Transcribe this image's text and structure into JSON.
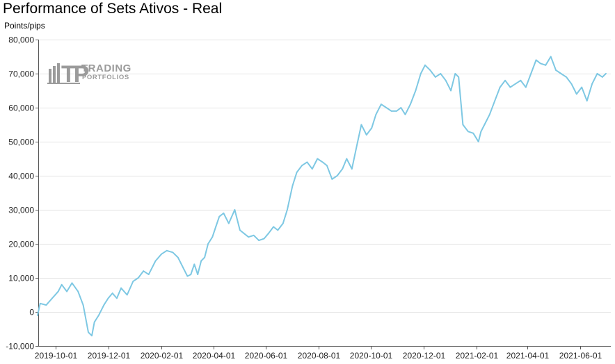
{
  "chart_data": {
    "type": "line",
    "title": "Performance of Sets Ativos - Real",
    "ylabel": "Points/pips",
    "xlabel": "",
    "ylim": [
      -10000,
      80000
    ],
    "y_ticks": [
      "-10,000",
      "0",
      "10,000",
      "20,000",
      "30,000",
      "40,000",
      "50,000",
      "60,000",
      "70,000",
      "80,000"
    ],
    "y_tick_values": [
      -10000,
      0,
      10000,
      20000,
      30000,
      40000,
      50000,
      60000,
      70000,
      80000
    ],
    "x_ticks": [
      "2019-10-01",
      "2019-12-01",
      "2020-02-01",
      "2020-04-01",
      "2020-06-01",
      "2020-08-01",
      "2020-10-01",
      "2020-12-01",
      "2021-02-01",
      "2021-04-01",
      "2021-06-01"
    ],
    "x_range": [
      "2019-09-10",
      "2021-07-01"
    ],
    "grid": true,
    "line_color": "#7ec8e3",
    "series": [
      {
        "x": [
          "2019-09-10",
          "2019-09-13",
          "2019-09-20",
          "2019-09-27",
          "2019-10-04",
          "2019-10-08",
          "2019-10-14",
          "2019-10-20",
          "2019-10-27",
          "2019-11-02",
          "2019-11-08",
          "2019-11-12",
          "2019-11-15",
          "2019-11-20",
          "2019-11-26",
          "2019-12-01",
          "2019-12-06",
          "2019-12-11",
          "2019-12-16",
          "2019-12-23",
          "2019-12-30",
          "2020-01-05",
          "2020-01-11",
          "2020-01-17",
          "2020-01-25",
          "2020-02-01",
          "2020-02-07",
          "2020-02-14",
          "2020-02-20",
          "2020-02-26",
          "2020-03-02",
          "2020-03-06",
          "2020-03-10",
          "2020-03-14",
          "2020-03-18",
          "2020-03-22",
          "2020-03-26",
          "2020-03-31",
          "2020-04-04",
          "2020-04-08",
          "2020-04-13",
          "2020-04-19",
          "2020-04-26",
          "2020-05-02",
          "2020-05-07",
          "2020-05-12",
          "2020-05-18",
          "2020-05-24",
          "2020-05-30",
          "2020-06-04",
          "2020-06-10",
          "2020-06-15",
          "2020-06-21",
          "2020-06-26",
          "2020-07-02",
          "2020-07-07",
          "2020-07-13",
          "2020-07-19",
          "2020-07-25",
          "2020-07-31",
          "2020-08-06",
          "2020-08-11",
          "2020-08-17",
          "2020-08-23",
          "2020-08-29",
          "2020-09-03",
          "2020-09-09",
          "2020-09-14",
          "2020-09-20",
          "2020-09-26",
          "2020-10-02",
          "2020-10-07",
          "2020-10-13",
          "2020-10-19",
          "2020-10-25",
          "2020-10-31",
          "2020-11-05",
          "2020-11-10",
          "2020-11-16",
          "2020-11-22",
          "2020-11-28",
          "2020-12-03",
          "2020-12-09",
          "2020-12-15",
          "2020-12-21",
          "2020-12-27",
          "2021-01-02",
          "2021-01-07",
          "2021-01-11",
          "2021-01-16",
          "2021-01-22",
          "2021-01-28",
          "2021-02-03",
          "2021-02-06",
          "2021-02-10",
          "2021-02-16",
          "2021-02-22",
          "2021-02-28",
          "2021-03-06",
          "2021-03-12",
          "2021-03-18",
          "2021-03-24",
          "2021-03-30",
          "2021-04-05",
          "2021-04-11",
          "2021-04-16",
          "2021-04-22",
          "2021-04-28",
          "2021-05-04",
          "2021-05-10",
          "2021-05-16",
          "2021-05-22",
          "2021-05-28",
          "2021-06-03",
          "2021-06-09",
          "2021-06-15",
          "2021-06-21",
          "2021-06-27",
          "2021-07-01"
        ],
        "y": [
          -1000,
          2500,
          2000,
          4000,
          6000,
          8000,
          6000,
          8500,
          6000,
          2000,
          -6000,
          -7000,
          -3000,
          -1000,
          2000,
          4000,
          5500,
          4000,
          7000,
          5000,
          9000,
          10000,
          12000,
          11000,
          15000,
          17000,
          18000,
          17500,
          16000,
          13000,
          10500,
          11000,
          14000,
          11000,
          15000,
          16000,
          20000,
          22000,
          25000,
          28000,
          29000,
          26000,
          30000,
          24000,
          23000,
          22000,
          22500,
          21000,
          21500,
          23000,
          25000,
          24000,
          26000,
          30000,
          37000,
          41000,
          43000,
          44000,
          42000,
          45000,
          44000,
          43000,
          39000,
          40000,
          42000,
          45000,
          42000,
          48000,
          55000,
          52000,
          54000,
          58000,
          61000,
          60000,
          59000,
          59000,
          60000,
          58000,
          61000,
          65000,
          70000,
          72500,
          71000,
          69000,
          70000,
          68000,
          65000,
          70000,
          69000,
          55000,
          53000,
          52500,
          50000,
          53000,
          55000,
          58000,
          62000,
          66000,
          68000,
          66000,
          67000,
          68000,
          66000,
          70000,
          74000,
          73000,
          72500,
          75000,
          71000,
          70000,
          69000,
          67000,
          64000,
          66000,
          62000,
          67000,
          70000,
          69000,
          70000
        ]
      }
    ]
  }
}
